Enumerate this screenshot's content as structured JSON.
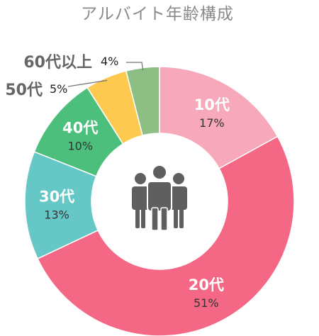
{
  "chart_data": {
    "type": "pie",
    "variant": "donut",
    "title": "アルバイト年齢構成",
    "categories": [
      "10代",
      "20代",
      "30代",
      "40代",
      "50代",
      "60代以上"
    ],
    "values": [
      17,
      51,
      13,
      10,
      5,
      4
    ],
    "value_labels": [
      "17%",
      "51%",
      "13%",
      "10%",
      "5%",
      "4%"
    ],
    "colors": [
      "#F7A8BA",
      "#F56885",
      "#65C8C6",
      "#4CBF7D",
      "#FDC94F",
      "#8DBF84"
    ],
    "label_placement": [
      "inside",
      "inside",
      "inside",
      "inside",
      "outside",
      "outside"
    ],
    "center_icon": "people-group-icon",
    "center_icon_color": "#5f5f5f",
    "start_angle": "12 o'clock",
    "direction": "clockwise"
  }
}
